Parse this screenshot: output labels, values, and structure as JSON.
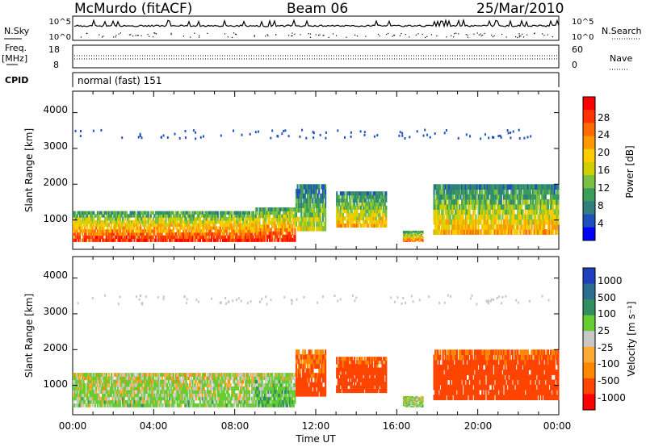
{
  "header": {
    "station": "McMurdo (fitACF)",
    "beam": "Beam 06",
    "date": "25/Mar/2010"
  },
  "noise_panel": {
    "left_label": "N.Sky",
    "right_label": "N.Search",
    "left_ticks": [
      "10^5",
      "10^0"
    ],
    "right_ticks": [
      "10^5",
      "10^0"
    ]
  },
  "freq_panel": {
    "left_label_1": "Freq.",
    "left_label_2": "[MHz]",
    "right_label": "Nave",
    "left_ticks": [
      "18",
      "8"
    ],
    "right_ticks": [
      "60",
      "0"
    ]
  },
  "cpid_panel": {
    "label": "CPID",
    "text": "normal (fast) 151"
  },
  "power_panel": {
    "ylabel": "Slant Range [km]",
    "yticks": [
      "4000",
      "3000",
      "2000",
      "1000"
    ],
    "colorbar_label": "Power [dB]",
    "colorbar_ticks": [
      "28",
      "24",
      "20",
      "16",
      "12",
      "8",
      "4"
    ],
    "colorbar_colors": [
      "#ff0000",
      "#ff3300",
      "#ff6a00",
      "#ff9900",
      "#ffcc00",
      "#cfcf00",
      "#7ac143",
      "#3a9e5a",
      "#2f7f7f",
      "#1f4fbf",
      "#0000ff"
    ]
  },
  "velocity_panel": {
    "ylabel": "Slant Range [km]",
    "yticks": [
      "4000",
      "3000",
      "2000",
      "1000"
    ],
    "colorbar_label": "Velocity [m s⁻¹]",
    "colorbar_ticks": [
      "1000",
      "500",
      "100",
      "25",
      "-25",
      "-100",
      "-500",
      "-1000"
    ],
    "colorbar_colors": [
      "#1f3fbf",
      "#2a6f8f",
      "#2f8f5f",
      "#66cc33",
      "#c8c8c8",
      "#ffaa33",
      "#ff8800",
      "#ff4400",
      "#ff0000"
    ]
  },
  "xaxis": {
    "xlabel": "Time UT",
    "ticks": [
      "00:00",
      "04:00",
      "08:00",
      "12:00",
      "16:00",
      "20:00",
      "00:00"
    ]
  },
  "chart_data": [
    {
      "type": "heatmap",
      "title": "Power",
      "xlabel": "",
      "ylabel": "Slant Range [km]",
      "ylim": [
        180,
        4600
      ],
      "xlim_hours": [
        0,
        24
      ],
      "colorbar": {
        "label": "Power [dB]",
        "range": [
          0,
          30
        ]
      },
      "echo_regions": [
        {
          "t0": 0.0,
          "t1": 9.0,
          "r0": 400,
          "r1": 1250,
          "value": 28
        },
        {
          "t0": 9.0,
          "t1": 11.0,
          "r0": 400,
          "r1": 1350,
          "value": 28
        },
        {
          "t0": 11.0,
          "t1": 12.5,
          "r0": 700,
          "r1": 2000,
          "value": 16
        },
        {
          "t0": 13.0,
          "t1": 15.5,
          "r0": 800,
          "r1": 1800,
          "value": 20
        },
        {
          "t0": 16.3,
          "t1": 17.3,
          "r0": 400,
          "r1": 700,
          "value": 24
        },
        {
          "t0": 17.8,
          "t1": 24.0,
          "r0": 600,
          "r1": 2000,
          "value": 20
        }
      ]
    },
    {
      "type": "heatmap",
      "title": "Velocity",
      "xlabel": "Time UT",
      "ylabel": "Slant Range [km]",
      "ylim": [
        180,
        4600
      ],
      "xlim_hours": [
        0,
        24
      ],
      "colorbar": {
        "label": "Velocity [m s⁻¹]",
        "range": [
          -1000,
          1000
        ]
      },
      "echo_regions": [
        {
          "t0": 0.0,
          "t1": 9.0,
          "r0": 400,
          "r1": 1350,
          "value": 50
        },
        {
          "t0": 9.0,
          "t1": 11.0,
          "r0": 400,
          "r1": 1350,
          "value": 100
        },
        {
          "t0": 11.0,
          "t1": 12.5,
          "r0": 700,
          "r1": 2000,
          "value": -200
        },
        {
          "t0": 13.0,
          "t1": 15.5,
          "r0": 800,
          "r1": 1800,
          "value": -300
        },
        {
          "t0": 16.3,
          "t1": 17.3,
          "r0": 400,
          "r1": 700,
          "value": 60
        },
        {
          "t0": 17.8,
          "t1": 24.0,
          "r0": 600,
          "r1": 2000,
          "value": -300
        }
      ]
    }
  ]
}
